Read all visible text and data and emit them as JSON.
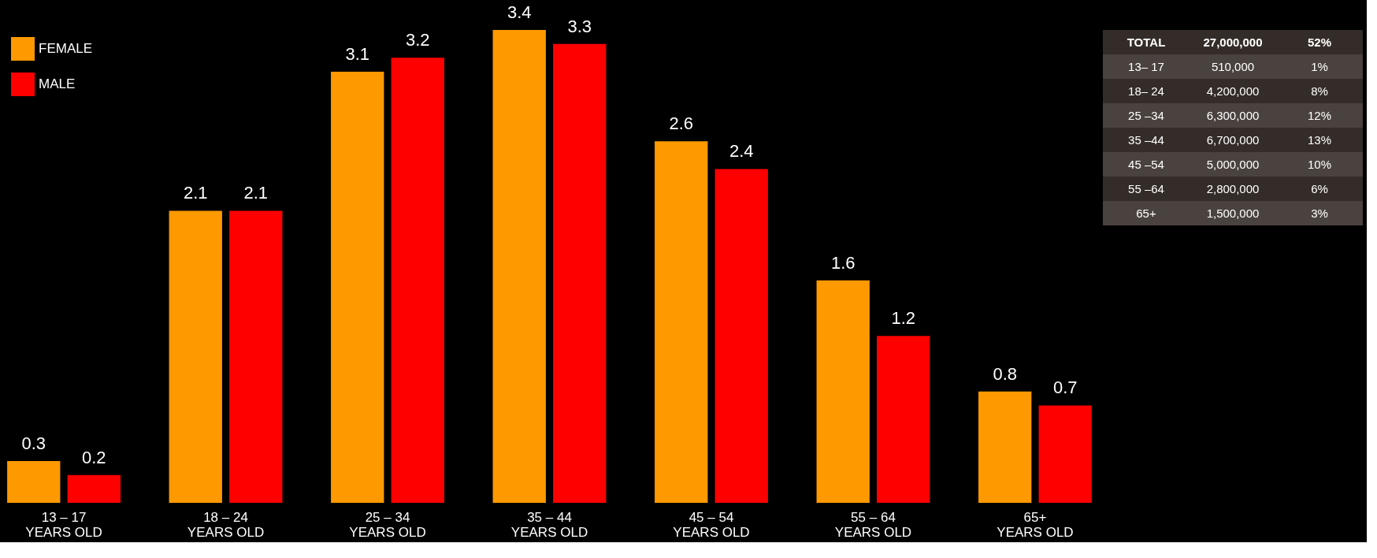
{
  "chart_data": [
    {
      "type": "bar",
      "categories": [
        "13 – 17\nYEARS OLD",
        "18 – 24\nYEARS OLD",
        "25 – 34\nYEARS OLD",
        "35 – 44\nYEARS OLD",
        "45 – 54\nYEARS OLD",
        "55 – 64\nYEARS OLD",
        "65+\nYEARS OLD"
      ],
      "series": [
        {
          "name": "FEMALE",
          "color": "#ff9900",
          "values": [
            0.3,
            2.1,
            3.1,
            3.4,
            2.6,
            1.6,
            0.8
          ]
        },
        {
          "name": "MALE",
          "color": "#ff0000",
          "values": [
            0.2,
            2.1,
            3.2,
            3.3,
            2.4,
            1.2,
            0.7
          ]
        }
      ],
      "data_labels": true,
      "legend": "top left",
      "grid": false
    },
    {
      "type": "other",
      "annotations": [
        "TOTAL",
        "27,000,000",
        "52%",
        "13– 17",
        "510,000",
        "1%",
        "18– 24",
        "4,200,000",
        "8%",
        "25 –34",
        "6,300,000",
        "12%",
        "35 –44",
        "6,700,000",
        "13%",
        "45 –54",
        "5,000,000",
        "10%",
        "55 –64",
        "2,800,000",
        "6%",
        "65+",
        "1,500,000",
        "3%"
      ]
    }
  ]
}
